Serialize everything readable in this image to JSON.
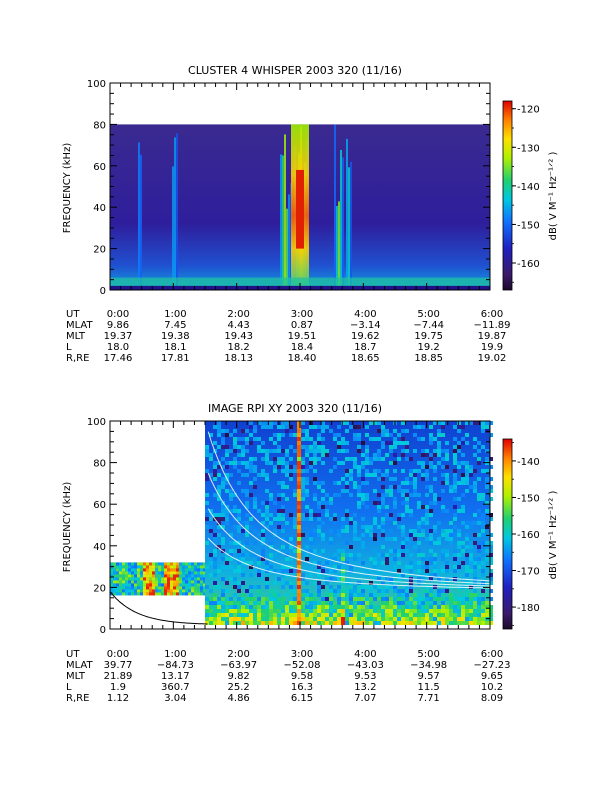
{
  "chart_data": [
    {
      "type": "heatmap",
      "title": "CLUSTER 4 WHISPER 2003 320 (11/16)",
      "ylabel": "FREQUENCY (kHz)",
      "ylim": [
        0,
        100
      ],
      "yticks": [
        "0",
        "20",
        "40",
        "60",
        "80",
        "100"
      ],
      "xlim_hours": [
        0,
        6
      ],
      "data_top_khz": 80,
      "colorbar": {
        "label": "dB( V M⁻¹ Hz⁻¹ᐟ² )",
        "range": [
          -167,
          -118
        ],
        "ticks": [
          "-120",
          "-130",
          "-140",
          "-150",
          "-160"
        ]
      },
      "bright_bands_hours": [
        [
          0.1,
          0.15
        ],
        [
          0.45,
          0.35
        ],
        [
          1.0,
          0.5
        ],
        [
          2.75,
          0.9
        ],
        [
          3.0,
          1.0
        ],
        [
          3.6,
          0.8
        ],
        [
          3.75,
          0.55
        ]
      ],
      "ephemeris": {
        "row_labels": [
          "UT",
          "MLAT",
          "MLT",
          "L",
          "R,RE"
        ],
        "columns": [
          [
            "0:00",
            "9.86",
            "19.37",
            "18.0",
            "17.46"
          ],
          [
            "1:00",
            "7.45",
            "19.38",
            "18.1",
            "17.81"
          ],
          [
            "2:00",
            "4.43",
            "19.43",
            "18.2",
            "18.13"
          ],
          [
            "3:00",
            "0.87",
            "19.51",
            "18.4",
            "18.40"
          ],
          [
            "4:00",
            "−3.14",
            "19.62",
            "18.7",
            "18.65"
          ],
          [
            "5:00",
            "−7.44",
            "19.75",
            "19.2",
            "18.85"
          ],
          [
            "6:00",
            "−11.89",
            "19.87",
            "19.9",
            "19.02"
          ]
        ]
      }
    },
    {
      "type": "heatmap",
      "title": "IMAGE RPI XY 2003 320 (11/16)",
      "ylabel": "FREQUENCY (kHz)",
      "ylim": [
        0,
        100
      ],
      "yticks": [
        "0",
        "20",
        "40",
        "60",
        "80",
        "100"
      ],
      "xlim_hours": [
        0,
        6
      ],
      "colorbar": {
        "label": "dB( V M⁻¹ Hz⁻¹ᐟ² )",
        "range": [
          -186,
          -134
        ],
        "ticks": [
          "-140",
          "-150",
          "-160",
          "-170",
          "-180"
        ]
      },
      "data_segments": [
        {
          "t_start": 0.0,
          "t_end": 1.5,
          "f_low": 17,
          "f_high": 32
        },
        {
          "t_start": 1.5,
          "t_end": 6.0,
          "f_low": 3,
          "f_high": 100
        }
      ],
      "ephemeris": {
        "row_labels": [
          "UT",
          "MLAT",
          "MLT",
          "L",
          "R,RE"
        ],
        "columns": [
          [
            "0:00",
            "39.77",
            "21.89",
            "1.9",
            "1.12"
          ],
          [
            "1:00",
            "−84.73",
            "13.17",
            "360.7",
            "3.04"
          ],
          [
            "2:00",
            "−63.97",
            "9.82",
            "25.2",
            "4.86"
          ],
          [
            "3:00",
            "−52.08",
            "9.58",
            "16.3",
            "6.15"
          ],
          [
            "4:00",
            "−43.03",
            "9.53",
            "13.2",
            "7.07"
          ],
          [
            "5:00",
            "−34.98",
            "9.57",
            "11.5",
            "7.71"
          ],
          [
            "6:00",
            "−27.23",
            "9.65",
            "10.2",
            "8.09"
          ]
        ]
      }
    }
  ]
}
